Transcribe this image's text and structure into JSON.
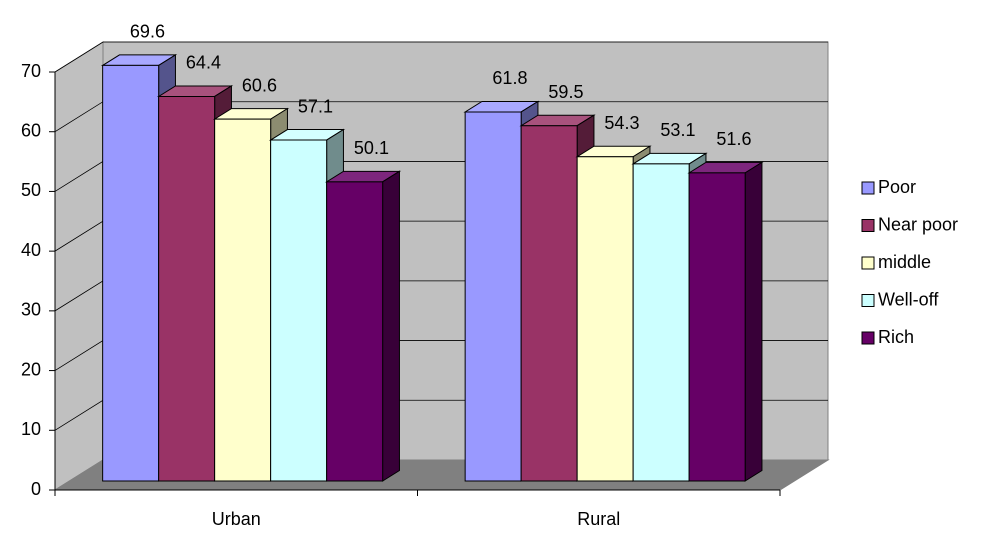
{
  "chart_data": {
    "type": "bar3d",
    "categories": [
      "Urban",
      "Rural"
    ],
    "series": [
      {
        "name": "Poor",
        "color": "#9999ff",
        "values": [
          69.6,
          61.8
        ]
      },
      {
        "name": "Near poor",
        "color": "#993366",
        "values": [
          64.4,
          59.5
        ]
      },
      {
        "name": "middle",
        "color": "#ffffcc",
        "values": [
          60.6,
          54.3
        ]
      },
      {
        "name": "Well-off",
        "color": "#ccffff",
        "values": [
          57.1,
          53.1
        ]
      },
      {
        "name": "Rich",
        "color": "#660066",
        "values": [
          50.1,
          51.6
        ]
      }
    ],
    "ylim": [
      0,
      70
    ],
    "yticks": [
      0,
      10,
      20,
      30,
      40,
      50,
      60,
      70
    ],
    "grid": true,
    "legend": "right"
  }
}
